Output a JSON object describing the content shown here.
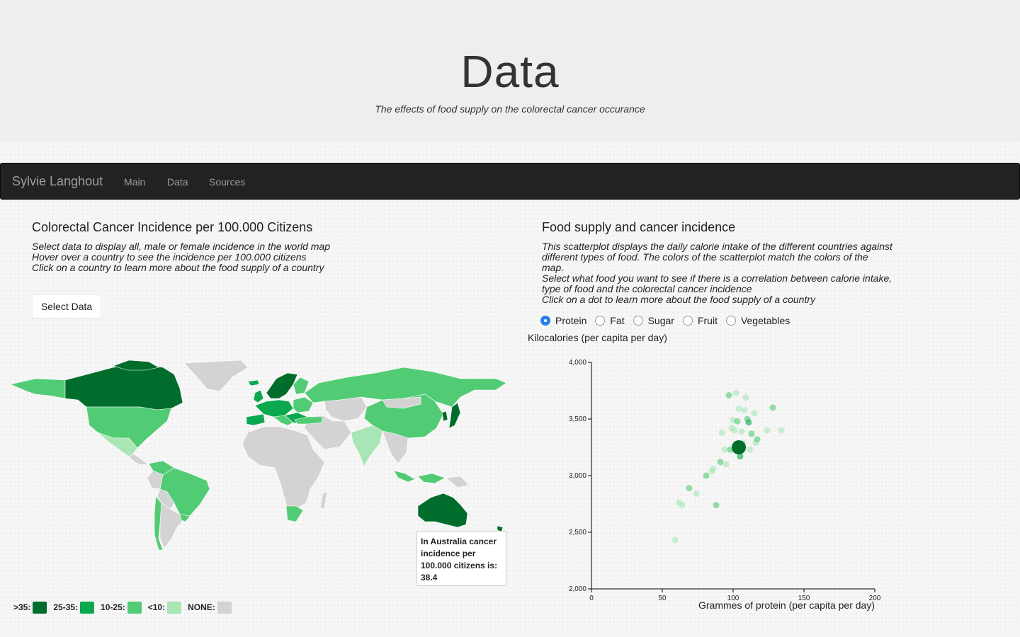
{
  "header": {
    "title": "Data",
    "subtitle": "The effects of food supply on the colorectal cancer occurance"
  },
  "navbar": {
    "brand": "Sylvie Langhout",
    "links": [
      "Main",
      "Data",
      "Sources"
    ]
  },
  "map_panel": {
    "title": "Colorectal Cancer Incidence per 100.000 Citizens",
    "desc": [
      "Select data to display all, male or female incidence in the world map",
      "Hover over a country to see the incidence per 100.000 citizens",
      "Click on a country to learn more about the food supply of a country"
    ],
    "select_button": "Select Data",
    "tooltip": {
      "lines": [
        "In Australia cancer",
        "incidence per",
        "100.000 citizens is:",
        "38.4"
      ]
    },
    "legend": [
      {
        "label": ">35:",
        "color": "#006d2c"
      },
      {
        "label": "25-35:",
        "color": "#0aa84f"
      },
      {
        "label": "10-25:",
        "color": "#52cc74"
      },
      {
        "label": "<10:",
        "color": "#a8e6b5"
      },
      {
        "label": "NONE:",
        "color": "#d3d3d3"
      }
    ]
  },
  "scatter_panel": {
    "title": "Food supply and cancer incidence",
    "desc": [
      "This scatterplot displays the daily calorie intake of the different countries against",
      "different types of food. The colors of the scatterplot match the colors of the",
      "map.",
      "Select what food you want to see if there is a correlation between calorie intake,",
      "type of food and the colorectal cancer incidence",
      "Click on a dot to learn more about the food supply of a country"
    ],
    "radios": [
      {
        "label": "Protein",
        "checked": true
      },
      {
        "label": "Fat",
        "checked": false
      },
      {
        "label": "Sugar",
        "checked": false
      },
      {
        "label": "Fruit",
        "checked": false
      },
      {
        "label": "Vegetables",
        "checked": false
      }
    ],
    "ylabel": "Kilocalories (per capita per day)"
  },
  "chart_data": {
    "type": "scatter",
    "xlabel": "Grammes of protein (per capita per day)",
    "ylabel": "Kilocalories (per capita per day)",
    "xlim": [
      0,
      200
    ],
    "ylim": [
      2000,
      4000
    ],
    "xticks": [
      "0",
      "50",
      "100",
      "150",
      "200"
    ],
    "yticks": [
      "2,000",
      "2,500",
      "3,000",
      "3,500",
      "4,000"
    ],
    "points": [
      {
        "x": 59,
        "y": 2430,
        "color": "#a8e6b5"
      },
      {
        "x": 62,
        "y": 2760,
        "color": "#a8e6b5"
      },
      {
        "x": 64,
        "y": 2740,
        "color": "#a8e6b5"
      },
      {
        "x": 69,
        "y": 2890,
        "color": "#52cc74"
      },
      {
        "x": 74,
        "y": 2840,
        "color": "#a8e6b5"
      },
      {
        "x": 81,
        "y": 3000,
        "color": "#52cc74"
      },
      {
        "x": 85,
        "y": 3040,
        "color": "#a8e6b5"
      },
      {
        "x": 88,
        "y": 2740,
        "color": "#52cc74"
      },
      {
        "x": 86,
        "y": 3060,
        "color": "#a8e6b5"
      },
      {
        "x": 91,
        "y": 3120,
        "color": "#52cc74"
      },
      {
        "x": 92,
        "y": 3380,
        "color": "#a8e6b5"
      },
      {
        "x": 94,
        "y": 3230,
        "color": "#a8e6b5"
      },
      {
        "x": 95,
        "y": 3100,
        "color": "#a8e6b5"
      },
      {
        "x": 97,
        "y": 3710,
        "color": "#52cc74"
      },
      {
        "x": 98,
        "y": 3230,
        "color": "#52cc74"
      },
      {
        "x": 99,
        "y": 3420,
        "color": "#a8e6b5"
      },
      {
        "x": 100,
        "y": 3490,
        "color": "#a8e6b5"
      },
      {
        "x": 101,
        "y": 3400,
        "color": "#a8e6b5"
      },
      {
        "x": 102,
        "y": 3730,
        "color": "#a8e6b5"
      },
      {
        "x": 103,
        "y": 3480,
        "color": "#52cc74"
      },
      {
        "x": 104,
        "y": 3590,
        "color": "#a8e6b5"
      },
      {
        "x": 105,
        "y": 3170,
        "color": "#0aa84f"
      },
      {
        "x": 106,
        "y": 3390,
        "color": "#a8e6b5"
      },
      {
        "x": 107,
        "y": 3290,
        "color": "#a8e6b5"
      },
      {
        "x": 108,
        "y": 3580,
        "color": "#a8e6b5"
      },
      {
        "x": 109,
        "y": 3690,
        "color": "#a8e6b5"
      },
      {
        "x": 110,
        "y": 3500,
        "color": "#52cc74"
      },
      {
        "x": 111,
        "y": 3470,
        "color": "#0aa84f"
      },
      {
        "x": 112,
        "y": 3230,
        "color": "#a8e6b5"
      },
      {
        "x": 113,
        "y": 3370,
        "color": "#52cc74"
      },
      {
        "x": 115,
        "y": 3550,
        "color": "#a8e6b5"
      },
      {
        "x": 116,
        "y": 3290,
        "color": "#a8e6b5"
      },
      {
        "x": 117,
        "y": 3320,
        "color": "#52cc74"
      },
      {
        "x": 124,
        "y": 3400,
        "color": "#a8e6b5"
      },
      {
        "x": 128,
        "y": 3600,
        "color": "#52cc74"
      },
      {
        "x": 134,
        "y": 3400,
        "color": "#a8e6b5"
      },
      {
        "x": 104,
        "y": 3250,
        "color": "#006d2c",
        "highlight": true
      }
    ]
  }
}
